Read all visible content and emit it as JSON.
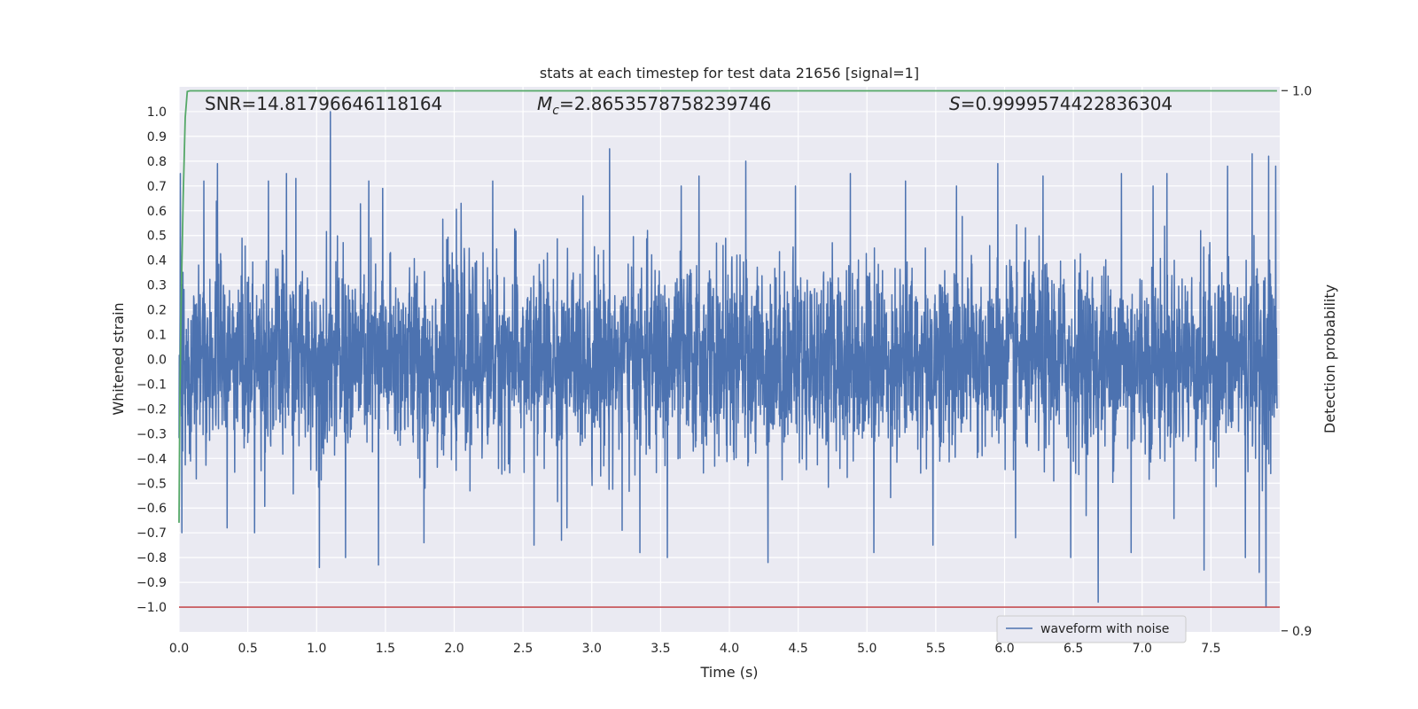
{
  "chart_data": {
    "type": "line",
    "title": "stats at each timestep for test data 21656 [signal=1]",
    "xlabel": "Time (s)",
    "ylabel": "Whitened strain",
    "y2label": "Detection probability",
    "xlim": [
      0.0,
      8.0
    ],
    "ylim": [
      -1.1,
      1.1
    ],
    "y2lim": [
      0.8998,
      1.0007
    ],
    "x_ticks": [
      "0.0",
      "0.5",
      "1.0",
      "1.5",
      "2.0",
      "2.5",
      "3.0",
      "3.5",
      "4.0",
      "4.5",
      "5.0",
      "5.5",
      "6.0",
      "6.5",
      "7.0",
      "7.5"
    ],
    "y_ticks": [
      "1.0",
      "0.9",
      "0.8",
      "0.7",
      "0.6",
      "0.5",
      "0.4",
      "0.3",
      "0.2",
      "0.1",
      "0.0",
      "−0.1",
      "−0.2",
      "−0.3",
      "−0.4",
      "−0.5",
      "−0.6",
      "−0.7",
      "−0.8",
      "−0.9",
      "−1.0"
    ],
    "y2_ticks": [
      "1.0",
      "0.9"
    ],
    "annotations": {
      "snr": "SNR=14.81796646118164",
      "mc": "=2.8653578758239746",
      "s": "=0.9999574422836304"
    },
    "grid": true,
    "legend_position": "lower-right",
    "colors": {
      "background": "#eaeaf2",
      "grid": "#ffffff",
      "waveform": "#4c72b0",
      "probability": "#55a868",
      "threshold": "#c44e52"
    },
    "series": [
      {
        "name": "waveform with noise",
        "axis": "left",
        "duration": 7.98,
        "peaks": [
          {
            "x": 0.01,
            "y": 0.75
          },
          {
            "x": 0.02,
            "y": -0.7
          },
          {
            "x": 0.18,
            "y": 0.72
          },
          {
            "x": 0.28,
            "y": 0.79
          },
          {
            "x": 0.35,
            "y": -0.68
          },
          {
            "x": 0.55,
            "y": -0.7
          },
          {
            "x": 0.65,
            "y": 0.72
          },
          {
            "x": 0.78,
            "y": 0.75
          },
          {
            "x": 0.85,
            "y": 0.73
          },
          {
            "x": 1.02,
            "y": -0.84
          },
          {
            "x": 1.1,
            "y": 1.0
          },
          {
            "x": 1.21,
            "y": -0.8
          },
          {
            "x": 1.38,
            "y": 0.72
          },
          {
            "x": 1.45,
            "y": -0.83
          },
          {
            "x": 1.48,
            "y": 0.69
          },
          {
            "x": 1.78,
            "y": -0.74
          },
          {
            "x": 2.05,
            "y": 0.63
          },
          {
            "x": 2.28,
            "y": 0.72
          },
          {
            "x": 2.58,
            "y": -0.75
          },
          {
            "x": 2.78,
            "y": -0.73
          },
          {
            "x": 2.82,
            "y": -0.68
          },
          {
            "x": 3.13,
            "y": 0.85
          },
          {
            "x": 3.22,
            "y": -0.69
          },
          {
            "x": 3.35,
            "y": -0.78
          },
          {
            "x": 3.55,
            "y": -0.8
          },
          {
            "x": 3.65,
            "y": 0.7
          },
          {
            "x": 3.78,
            "y": 0.74
          },
          {
            "x": 4.12,
            "y": 0.8
          },
          {
            "x": 4.28,
            "y": -0.82
          },
          {
            "x": 4.48,
            "y": 0.7
          },
          {
            "x": 4.88,
            "y": 0.75
          },
          {
            "x": 5.05,
            "y": -0.78
          },
          {
            "x": 5.28,
            "y": 0.72
          },
          {
            "x": 5.48,
            "y": -0.75
          },
          {
            "x": 5.65,
            "y": 0.7
          },
          {
            "x": 5.95,
            "y": 0.79
          },
          {
            "x": 6.08,
            "y": -0.72
          },
          {
            "x": 6.28,
            "y": 0.74
          },
          {
            "x": 6.48,
            "y": -0.8
          },
          {
            "x": 6.68,
            "y": -0.98
          },
          {
            "x": 6.85,
            "y": 0.75
          },
          {
            "x": 6.92,
            "y": -0.78
          },
          {
            "x": 7.08,
            "y": 0.7
          },
          {
            "x": 7.18,
            "y": 0.75
          },
          {
            "x": 7.45,
            "y": -0.85
          },
          {
            "x": 7.62,
            "y": 0.78
          },
          {
            "x": 7.75,
            "y": -0.8
          },
          {
            "x": 7.8,
            "y": 0.83
          },
          {
            "x": 7.85,
            "y": -0.86
          },
          {
            "x": 7.9,
            "y": -1.0
          },
          {
            "x": 7.92,
            "y": 0.82
          },
          {
            "x": 7.97,
            "y": 0.78
          }
        ]
      },
      {
        "name": "",
        "axis": "right",
        "x": [
          0.0,
          0.005,
          0.015,
          0.03,
          0.045,
          0.06,
          0.08,
          7.98
        ],
        "y": [
          0.92,
          0.94,
          0.96,
          0.98,
          0.995,
          0.99985,
          0.99996,
          0.99996
        ]
      },
      {
        "name": "",
        "axis": "left",
        "x": [
          0.0,
          8.0
        ],
        "y": [
          -1.0,
          -1.0
        ]
      }
    ]
  }
}
